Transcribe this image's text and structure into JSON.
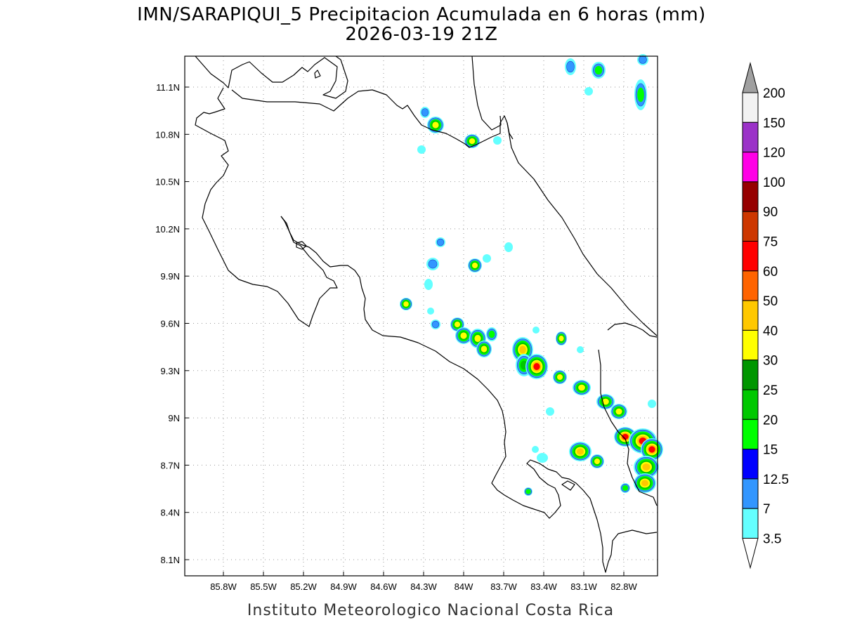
{
  "header": {
    "title": "IMN/SARAPIQUI_5 Precipitacion Acumulada en 6 horas (mm)",
    "subtitle": "2026-03-19 21Z"
  },
  "map": {
    "lon_ticks": [
      "85.8W",
      "85.5W",
      "85.2W",
      "84.9W",
      "84.6W",
      "84.3W",
      "84W",
      "83.7W",
      "83.4W",
      "83.1W",
      "82.8W"
    ],
    "lon_values": [
      -85.8,
      -85.5,
      -85.2,
      -84.9,
      -84.6,
      -84.3,
      -84.0,
      -83.7,
      -83.4,
      -83.1,
      -82.8
    ],
    "lat_ticks": [
      "11.1N",
      "10.8N",
      "10.5N",
      "10.2N",
      "9.9N",
      "9.6N",
      "9.3N",
      "9N",
      "8.7N",
      "8.4N",
      "8.1N"
    ],
    "lat_values": [
      11.1,
      10.8,
      10.5,
      10.2,
      9.9,
      9.6,
      9.3,
      9.0,
      8.7,
      8.4,
      8.1
    ],
    "grid": true
  },
  "legend": {
    "labels": [
      "200",
      "150",
      "120",
      "100",
      "90",
      "75",
      "60",
      "50",
      "40",
      "30",
      "25",
      "20",
      "15",
      "12.5",
      "7",
      "3.5"
    ],
    "colors": [
      "#f2f2f2",
      "#9b32c8",
      "#ff00e6",
      "#960000",
      "#cd3700",
      "#ff0000",
      "#ff6400",
      "#ffc800",
      "#ffff00",
      "#009600",
      "#00c800",
      "#00ff00",
      "#0000ff",
      "#3296ff",
      "#64ffff"
    ],
    "over_color": "#a0a0a0"
  },
  "footer": {
    "credit": "Instituto Meteorologico Nacional Costa Rica"
  }
}
